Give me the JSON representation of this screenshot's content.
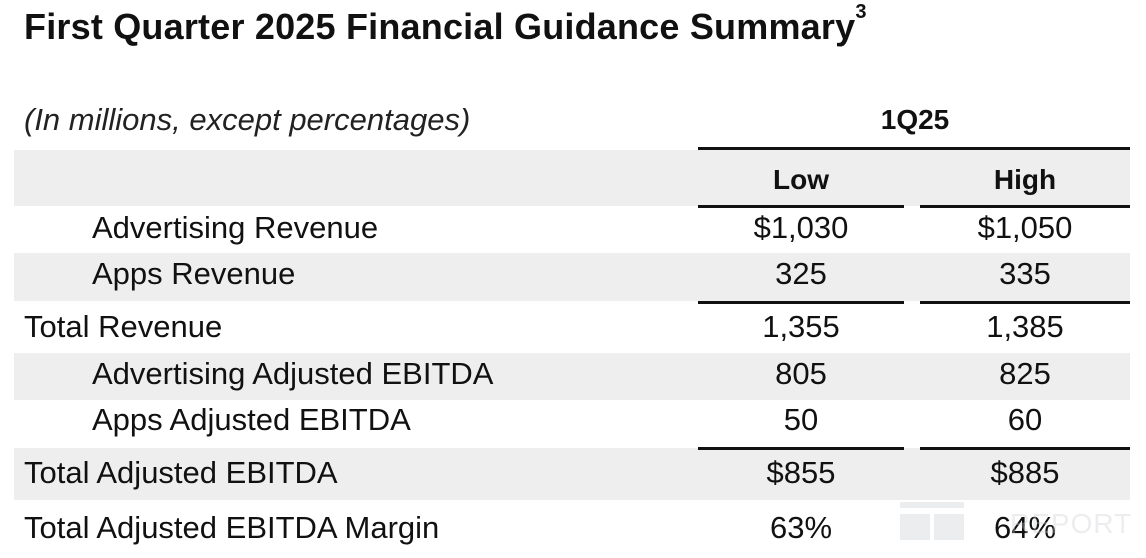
{
  "title": "First Quarter 2025 Financial Guidance Summary",
  "title_footnote": "3",
  "units_note": "(In millions, except percentages)",
  "period_header": "1Q25",
  "columns": {
    "low": "Low",
    "high": "High"
  },
  "rows": [
    {
      "label": "Advertising Revenue",
      "low": "$1,030",
      "high": "$1,050"
    },
    {
      "label": "Apps Revenue",
      "low": "325",
      "high": "335"
    },
    {
      "label": "Total Revenue",
      "low": "1,355",
      "high": "1,385"
    },
    {
      "label": "Advertising Adjusted EBITDA",
      "low": "805",
      "high": "825"
    },
    {
      "label": "Apps Adjusted EBITDA",
      "low": "50",
      "high": "60"
    },
    {
      "label": "Total Adjusted EBITDA",
      "low": "$855",
      "high": "$885"
    },
    {
      "label": "Total Adjusted EBITDA Margin",
      "low": "63%",
      "high": "64%"
    }
  ],
  "watermark": "REPORT",
  "colors": {
    "band": "#eeeeee",
    "text": "#111111",
    "rule": "#111111"
  }
}
